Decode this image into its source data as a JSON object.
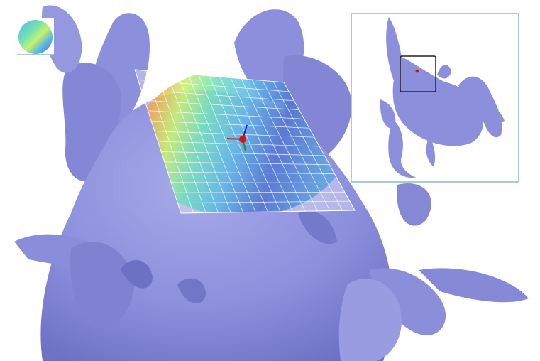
{
  "viewer": {
    "surface_color": "#8c8fdc",
    "surface_shadow": "#5f62b8",
    "background": "#ffffff",
    "minimap_border": "#a9cad6",
    "height_patch": {
      "colormap": [
        "#4a6fd0",
        "#58b6e6",
        "#6fe0b8",
        "#c6f06a",
        "#f4e25a",
        "#f2a24a",
        "#e24a3c"
      ],
      "grid_rows": 14,
      "grid_cols": 14
    },
    "gizmo": {
      "x_axis_color": "#d42020",
      "y_axis_color": "#2a8a2a",
      "z_axis_color": "#2020c0",
      "center_color": "#e01010"
    },
    "icons": {
      "colormap_thumbnail": "colormap-circle-icon",
      "transform_gizmo": "axis-gizmo-icon",
      "minimap_view_box": "view-frame-icon"
    }
  }
}
